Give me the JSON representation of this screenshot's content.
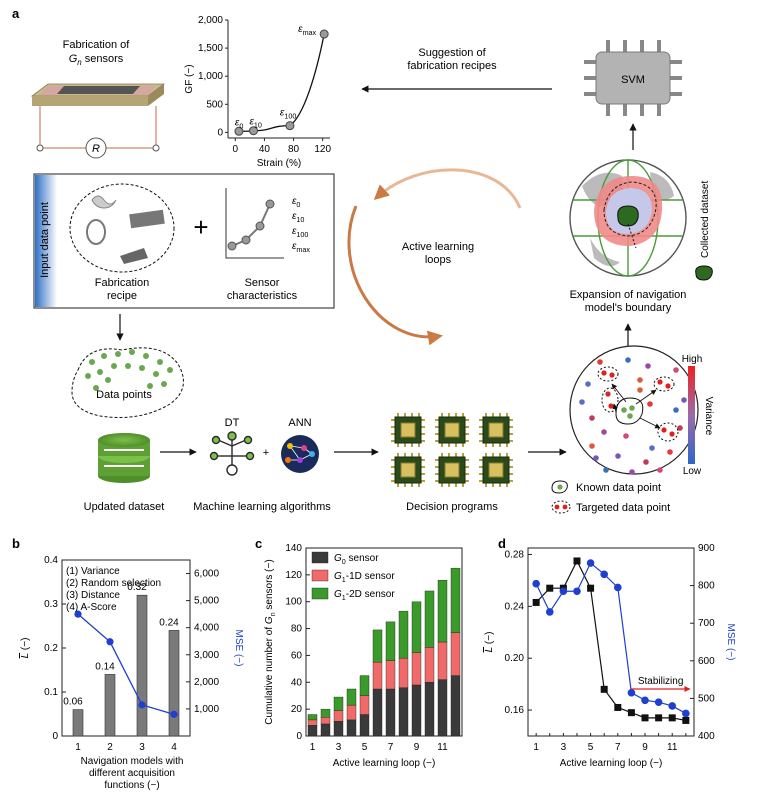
{
  "panel_labels": {
    "a": "a",
    "b": "b",
    "c": "c",
    "d": "d"
  },
  "panel_a": {
    "fabrication_title_1": "Fabrication of",
    "fabrication_title_2_main": "G",
    "fabrication_title_2_sub": "n",
    "fabrication_title_2_rest": " sensors",
    "resistor_label": "R",
    "suggestion_1": "Suggestion of",
    "suggestion_2": "fabrication recipes",
    "svm_label": "SVM",
    "input_data_point": "Input data point",
    "fabrication_recipe_1": "Fabrication",
    "fabrication_recipe_2": "recipe",
    "plus": "+",
    "sensor_char_1": "Sensor",
    "sensor_char_2": "characteristics",
    "eps_list": [
      {
        "main": "ε",
        "sub": "0"
      },
      {
        "main": "ε",
        "sub": "10"
      },
      {
        "main": "ε",
        "sub": "100"
      },
      {
        "main": "ε",
        "sub": "max"
      }
    ],
    "active_learning_1": "Active learning",
    "active_learning_2": "loops",
    "collected_dataset": "Collected dataset",
    "expansion_1": "Expansion of navigation",
    "expansion_2": "model's boundary",
    "data_points": "Data points",
    "dt_label": "DT",
    "ann_label": "ANN",
    "plus_small": "+",
    "updated_dataset": "Updated dataset",
    "ml_algorithms": "Machine learning algorithms",
    "decision_programs": "Decision programs",
    "variance_high": "High",
    "variance_label": "Variance",
    "variance_low": "Low",
    "known_data_point": "Known data point",
    "targeted_data_point": "Targeted data point",
    "colors": {
      "green": "#6aa84f",
      "red": "#e03030",
      "blue": "#3b6fb6",
      "arrow_copper": "#d08a55"
    }
  },
  "chart_data": [
    {
      "id": "a_inset",
      "type": "line",
      "title": "",
      "xlabel": "Strain (%)",
      "ylabel": "GF (−)",
      "x": [
        5,
        25,
        75,
        122
      ],
      "y": [
        20,
        30,
        120,
        1750
      ],
      "point_labels": [
        {
          "main": "ε",
          "sub": "0"
        },
        {
          "main": "ε",
          "sub": "10"
        },
        {
          "main": "ε",
          "sub": "100"
        },
        {
          "main": "ε",
          "sub": "max"
        }
      ],
      "xlim": [
        -10,
        130
      ],
      "ylim": [
        -100,
        2000
      ],
      "xticks": [
        0,
        40,
        80,
        120
      ],
      "xtick_labels": [
        "0",
        "40",
        "80",
        "120"
      ],
      "yticks": [
        0,
        500,
        1000,
        1500,
        2000
      ],
      "ytick_labels": [
        "0",
        "500",
        "1,000",
        "1,500",
        "2,000"
      ]
    },
    {
      "id": "b",
      "type": "bar",
      "title": "",
      "xlabel_1": "Navigation models with",
      "xlabel_2": "different acquisition",
      "xlabel_3": "functions (−)",
      "ylabel_main": "L",
      "ylabel_rest": " (−)",
      "y2label": "MSE (−)",
      "categories": [
        "1",
        "2",
        "3",
        "4"
      ],
      "bar_values": [
        0.06,
        0.14,
        0.32,
        0.24
      ],
      "bar_value_labels": [
        "0.06",
        "0.14",
        "0.32",
        "0.24"
      ],
      "mse_values": [
        4500,
        3480,
        1150,
        800
      ],
      "ylim": [
        0,
        0.4
      ],
      "yticks": [
        0,
        0.1,
        0.2,
        0.3,
        0.4
      ],
      "ytick_labels": [
        "0",
        "0.1",
        "0.2",
        "0.3",
        "0.4"
      ],
      "y2lim": [
        0,
        6500
      ],
      "y2ticks": [
        1000,
        2000,
        3000,
        4000,
        5000,
        6000
      ],
      "y2tick_labels": [
        "1,000",
        "2,000",
        "3,000",
        "4,000",
        "5,000",
        "6,000"
      ],
      "legend": [
        "(1) Variance",
        "(2) Random selection",
        "(3) Distance",
        "(4) A-Score"
      ],
      "bar_color": "#7a7a7a",
      "line_color": "#1f3fcf"
    },
    {
      "id": "c",
      "type": "bar",
      "stacked": true,
      "title": "",
      "xlabel": "Active learning loop (−)",
      "ylabel_1": "Cumulative number of ",
      "ylabel_2_main": "G",
      "ylabel_2_sub": "n",
      "ylabel_3": " sensors (−)",
      "categories": [
        "1",
        "2",
        "3",
        "4",
        "5",
        "6",
        "7",
        "8",
        "9",
        "10",
        "11",
        "12"
      ],
      "xtick_labels": [
        "1",
        "3",
        "5",
        "7",
        "9",
        "11"
      ],
      "series": [
        {
          "name_main": "G",
          "name_sub": "0",
          "name_rest": " sensor",
          "color": "#3a3a3a",
          "values": [
            8,
            9,
            11,
            12,
            16,
            35,
            35,
            36,
            38,
            40,
            42,
            45
          ]
        },
        {
          "name_main": "G",
          "name_sub": "1",
          "name_rest": "-1D sensor",
          "color": "#f06a6a",
          "values": [
            4,
            5,
            8,
            11,
            14,
            20,
            21,
            22,
            24,
            26,
            28,
            32
          ]
        },
        {
          "name_main": "G",
          "name_sub": "1",
          "name_rest": "-2D sensor",
          "color": "#3a9a2a",
          "values": [
            4,
            6,
            10,
            12,
            15,
            24,
            29,
            35,
            38,
            42,
            46,
            48
          ]
        }
      ],
      "ylim": [
        0,
        140
      ],
      "yticks": [
        0,
        20,
        40,
        60,
        80,
        100,
        120,
        140
      ],
      "ytick_labels": [
        "0",
        "20",
        "40",
        "60",
        "80",
        "100",
        "120",
        "140"
      ]
    },
    {
      "id": "d",
      "type": "line",
      "title": "",
      "xlabel": "Active learning loop (−)",
      "ylabel_main": "L",
      "ylabel_rest": " (−)",
      "y2label": "MSE (−)",
      "x": [
        1,
        2,
        3,
        4,
        5,
        6,
        7,
        8,
        9,
        10,
        11,
        12
      ],
      "xtick_labels": [
        "1",
        "3",
        "5",
        "7",
        "9",
        "11"
      ],
      "series": [
        {
          "name": "L",
          "color": "#111111",
          "values": [
            0.243,
            0.254,
            0.254,
            0.275,
            0.254,
            0.176,
            0.162,
            0.158,
            0.154,
            0.154,
            0.154,
            0.152
          ]
        },
        {
          "name": "MSE",
          "color": "#1f3fcf",
          "values": [
            805,
            730,
            785,
            785,
            860,
            830,
            795,
            515,
            495,
            490,
            480,
            460
          ]
        }
      ],
      "ylim": [
        0.14,
        0.285
      ],
      "yticks": [
        0.16,
        0.2,
        0.24,
        0.28
      ],
      "ytick_labels": [
        "0.16",
        "0.20",
        "0.24",
        "0.28"
      ],
      "y2lim": [
        400,
        900
      ],
      "y2ticks": [
        400,
        500,
        600,
        700,
        800,
        900
      ],
      "y2tick_labels": [
        "400",
        "500",
        "600",
        "700",
        "800",
        "900"
      ],
      "annotation": "Stabilizing"
    }
  ]
}
